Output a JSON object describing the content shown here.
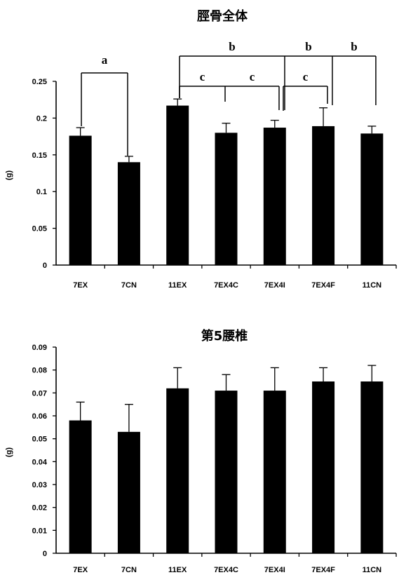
{
  "chart_data": [
    {
      "type": "bar",
      "title": "脛骨全体",
      "ylabel": "(g)",
      "categories": [
        "7EX",
        "7CN",
        "11EX",
        "7EX4C",
        "7EX4I",
        "7EX4F",
        "11CN"
      ],
      "values": [
        0.176,
        0.14,
        0.217,
        0.18,
        0.187,
        0.189,
        0.179
      ],
      "errors": [
        0.011,
        0.008,
        0.009,
        0.013,
        0.01,
        0.025,
        0.01
      ],
      "ylim": [
        0,
        0.25
      ],
      "yticks": [
        0,
        0.05,
        0.1,
        0.15,
        0.2,
        0.25
      ],
      "grid": false,
      "bar_color": "#000000",
      "significance": [
        {
          "anchors": [
            0,
            1
          ],
          "labels": [
            "a"
          ]
        },
        {
          "anchors": [
            2,
            4,
            5,
            6
          ],
          "labels": [
            "b",
            "b",
            "b"
          ]
        },
        {
          "anchors": [
            2,
            3,
            4
          ],
          "labels": [
            "c",
            "c"
          ]
        },
        {
          "anchors": [
            4,
            5
          ],
          "labels": [
            "c"
          ]
        }
      ]
    },
    {
      "type": "bar",
      "title": "第5腰椎",
      "ylabel": "(g)",
      "categories": [
        "7EX",
        "7CN",
        "11EX",
        "7EX4C",
        "7EX4I",
        "7EX4F",
        "11CN"
      ],
      "values": [
        0.058,
        0.053,
        0.072,
        0.071,
        0.071,
        0.075,
        0.075
      ],
      "errors": [
        0.008,
        0.012,
        0.009,
        0.007,
        0.01,
        0.006,
        0.007
      ],
      "ylim": [
        0,
        0.09
      ],
      "yticks": [
        0,
        0.01,
        0.02,
        0.03,
        0.04,
        0.05,
        0.06,
        0.07,
        0.08,
        0.09
      ],
      "grid": false,
      "bar_color": "#000000"
    }
  ]
}
